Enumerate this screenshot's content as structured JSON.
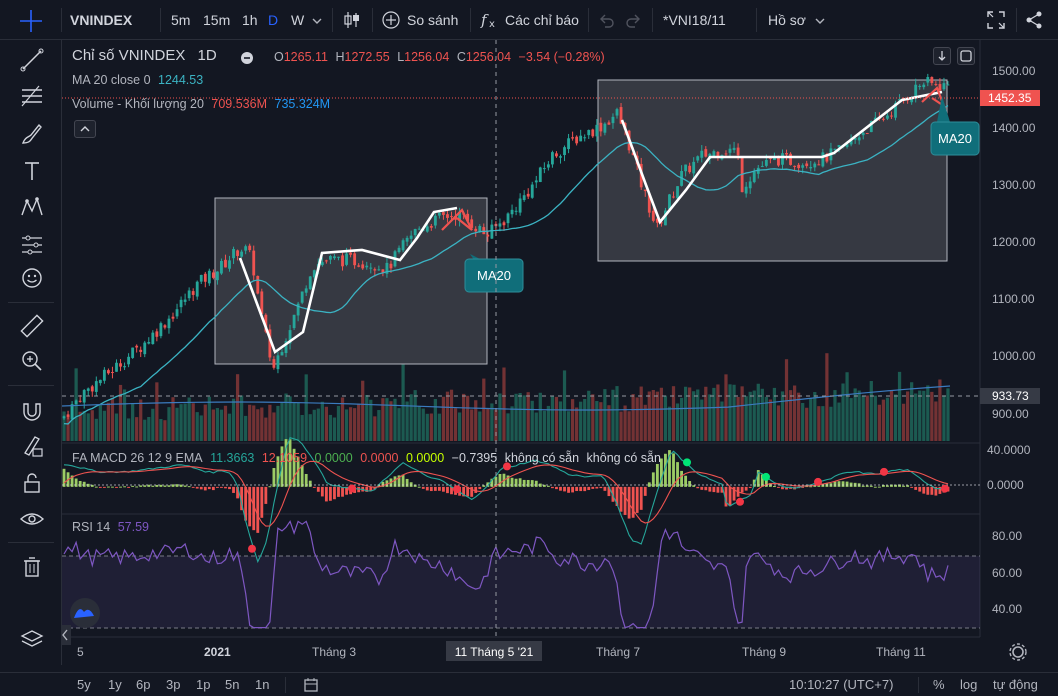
{
  "toolbar": {
    "symbol": "VNINDEX",
    "intervals": [
      "5m",
      "15m",
      "1h",
      "D",
      "W"
    ],
    "active_interval": "D",
    "compare_label": "So sánh",
    "indicators_label": "Các chỉ báo",
    "layout_name": "*VNI18/11",
    "profile_label": "Hồ sơ"
  },
  "legend": {
    "title": "Chỉ số VNINDEX",
    "interval": "1D",
    "o_label": "O",
    "o_value": "1265.11",
    "h_label": "H",
    "h_value": "1272.55",
    "l_label": "L",
    "l_value": "1256.04",
    "c_label": "C",
    "c_value": "1256.04",
    "change": "−3.54 (−0.28%)",
    "ma_name": "MA 20 close 0",
    "ma_value": "1244.53",
    "vol_name": "Volume - Khối lượng 20",
    "vol_value1": "709.536M",
    "vol_value2": "735.324M"
  },
  "macd_legend": {
    "name": "FA MACD 26 12 9 EMA",
    "v1": "11.3663",
    "v2": "12.1059",
    "v3": "0.0000",
    "v4": "0.0000",
    "v5": "0.0000",
    "v6": "−0.7395",
    "na1": "không có sẵn",
    "na2": "không có sẵn"
  },
  "rsi_legend": {
    "name": "RSI 14",
    "value": "57.59"
  },
  "price_axis": {
    "ticks": [
      "1500.00",
      "1400.00",
      "1300.00",
      "1200.00",
      "1100.00",
      "1000.00",
      "900.00"
    ],
    "last_price": "1452.35",
    "crosshair_price": "933.73"
  },
  "macd_axis": {
    "ticks": [
      "40.0000",
      "0.0000"
    ]
  },
  "rsi_axis": {
    "ticks": [
      "80.00",
      "60.00",
      "40.00"
    ]
  },
  "time_axis": {
    "labels": [
      "5",
      "2021",
      "Tháng 3",
      "Tháng 7",
      "Tháng 9",
      "Tháng 11"
    ],
    "crosshair_label": "11 Tháng 5 '21"
  },
  "annotations": [
    {
      "text": "MA20"
    },
    {
      "text": "MA20"
    }
  ],
  "bottom": {
    "ranges": [
      "5y",
      "1y",
      "6p",
      "3p",
      "1p",
      "5n",
      "1n"
    ],
    "clock": "10:10:27 (UTC+7)",
    "percent": "%",
    "log": "log",
    "auto": "tự động"
  },
  "colors": {
    "background": "#131722",
    "up": "#26a69a",
    "down": "#ef5350",
    "ma": "#3bb3c3",
    "rsi": "#7e57c2",
    "accent": "#2962ff"
  },
  "chart_data": {
    "type": "candlestick",
    "symbol": "VNINDEX",
    "interval": "1D",
    "price_range": [
      880,
      1540
    ],
    "price_path": [
      [
        0,
        920
      ],
      [
        20,
        960
      ],
      [
        50,
        1000
      ],
      [
        80,
        1040
      ],
      [
        110,
        1090
      ],
      [
        135,
        1140
      ],
      [
        160,
        1170
      ],
      [
        175,
        1195
      ],
      [
        182,
        1200
      ],
      [
        190,
        1180
      ],
      [
        198,
        1100
      ],
      [
        203,
        1060
      ],
      [
        211,
        1000
      ],
      [
        220,
        1040
      ],
      [
        235,
        1100
      ],
      [
        250,
        1170
      ],
      [
        265,
        1180
      ],
      [
        285,
        1180
      ],
      [
        310,
        1175
      ],
      [
        325,
        1165
      ],
      [
        340,
        1200
      ],
      [
        355,
        1230
      ],
      [
        380,
        1250
      ],
      [
        395,
        1255
      ],
      [
        410,
        1240
      ],
      [
        425,
        1220
      ],
      [
        445,
        1250
      ],
      [
        470,
        1300
      ],
      [
        490,
        1350
      ],
      [
        515,
        1380
      ],
      [
        540,
        1400
      ],
      [
        555,
        1420
      ],
      [
        565,
        1380
      ],
      [
        580,
        1300
      ],
      [
        595,
        1230
      ],
      [
        605,
        1270
      ],
      [
        620,
        1320
      ],
      [
        640,
        1350
      ],
      [
        660,
        1360
      ],
      [
        675,
        1360
      ],
      [
        680,
        1300
      ],
      [
        695,
        1330
      ],
      [
        715,
        1345
      ],
      [
        740,
        1340
      ],
      [
        760,
        1345
      ],
      [
        780,
        1360
      ],
      [
        800,
        1390
      ],
      [
        820,
        1410
      ],
      [
        840,
        1440
      ],
      [
        860,
        1470
      ],
      [
        880,
        1465
      ]
    ],
    "ma20": "MA 20 close",
    "volume_series": "Volume - Khối lượng 20",
    "macd_range": [
      -30,
      50
    ],
    "rsi_range": [
      20,
      90
    ],
    "rsi_bands": [
      70,
      30
    ]
  }
}
